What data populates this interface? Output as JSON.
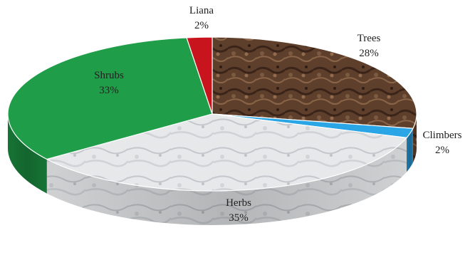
{
  "chart_data": {
    "type": "pie",
    "style": "3d",
    "title": "",
    "slices": [
      {
        "label": "Trees",
        "value": 28,
        "value_label": "28%",
        "color": "#6b4a35",
        "fill": "bark"
      },
      {
        "label": "Climbers",
        "value": 2,
        "value_label": "2%",
        "color": "#2aa5e6",
        "fill": "solid"
      },
      {
        "label": "Herbs",
        "value": 35,
        "value_label": "35%",
        "color": "#d9dcdf",
        "fill": "marble"
      },
      {
        "label": "Shrubs",
        "value": 33,
        "value_label": "33%",
        "color": "#1f9d48",
        "fill": "solid"
      },
      {
        "label": "Liana",
        "value": 2,
        "value_label": "2%",
        "color": "#c8141c",
        "fill": "solid"
      }
    ],
    "legend": "none",
    "data_labels": "outside-and-inside"
  }
}
